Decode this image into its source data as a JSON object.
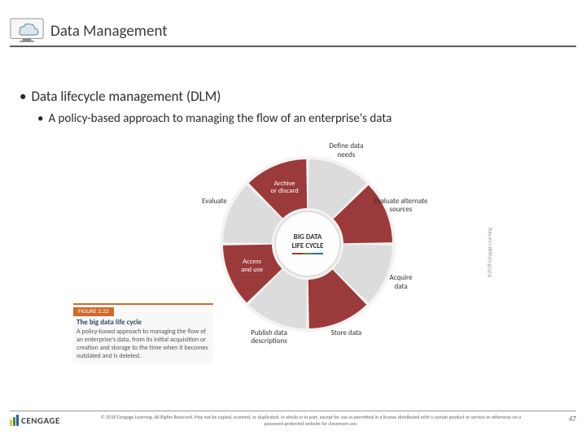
{
  "header": {
    "title": "Data Management",
    "icon_name": "cloud"
  },
  "bullets": {
    "level1": "Data lifecycle management (DLM)",
    "level2": "A policy-based approach to managing the flow of an enterprise's data"
  },
  "wheel": {
    "center_line1": "BIG DATA",
    "center_line2": "LIFE CYCLE",
    "accent_colors": [
      "#9a3a3a",
      "#5a8a3a",
      "#3a6a9a"
    ],
    "segments": [
      {
        "label": "Define data\nneeds",
        "color": "#dcdcdc",
        "label_color": "#333",
        "external": true
      },
      {
        "label": "Evaluate alternate\nsources",
        "color": "#9a3a3a",
        "label_color": "#fff",
        "external": true
      },
      {
        "label": "Acquire\ndata",
        "color": "#dcdcdc",
        "label_color": "#333",
        "external": true
      },
      {
        "label": "Store data",
        "color": "#9a3a3a",
        "label_color": "#333",
        "external": true
      },
      {
        "label": "Publish data\ndescriptions",
        "color": "#dcdcdc",
        "label_color": "#333",
        "external": true
      },
      {
        "label": "Access\nand use",
        "color": "#9a3a3a",
        "label_color": "#fff",
        "external": false
      },
      {
        "label": "Evaluate",
        "color": "#dcdcdc",
        "label_color": "#333",
        "external": true
      },
      {
        "label": "Archive\nor discard",
        "color": "#9a3a3a",
        "label_color": "#fff",
        "external": false
      }
    ],
    "outer_radius": 104,
    "inner_radius": 44,
    "gap_deg": 2,
    "background": "#f4f3f2"
  },
  "figure": {
    "number": "FIGURE 3.22",
    "title": "The big data life cycle",
    "description": "A policy-based approach to managing the flow of an enterprise's data, from its initial acquisition or creation and storage to the time when it becomes outdated and is deleted."
  },
  "credit": "©2018 Cengage Learning",
  "footer": {
    "logo_text": "CENGAGE",
    "logo_colors": [
      "#f4c430",
      "#3a8a4a",
      "#2a5a9a"
    ],
    "copyright": "© 2018 Cengage Learning. All Rights Reserved. May not be copied, scanned, or duplicated, in whole or in part, except for use as permitted in a license distributed with a certain product or service or otherwise on a password-protected website for classroom use.",
    "page": "47"
  }
}
